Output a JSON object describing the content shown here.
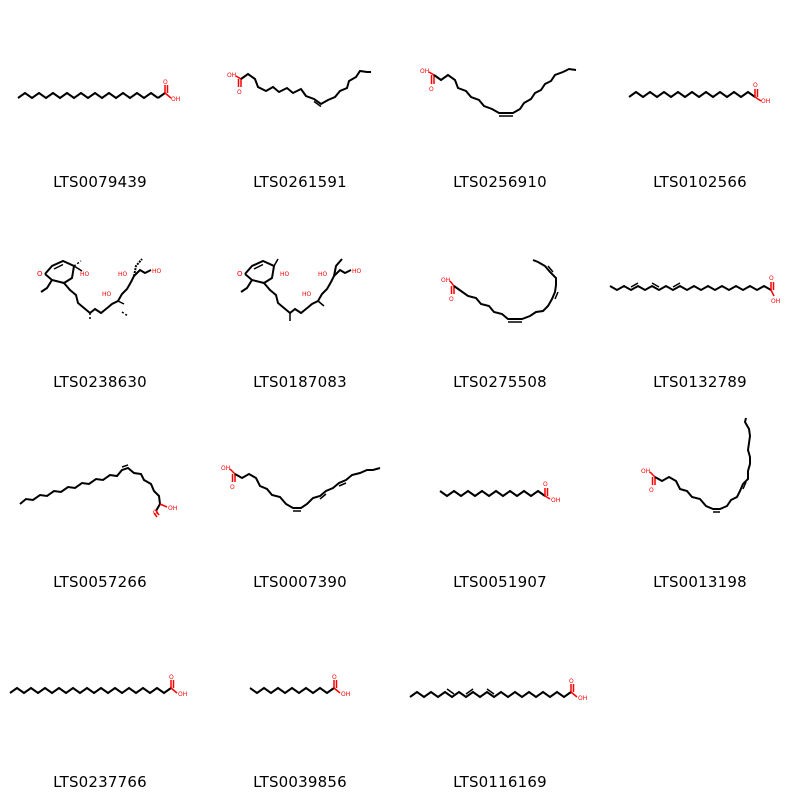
{
  "colors": {
    "bond": "#000000",
    "heteroatom": "#ff0000",
    "background": "#ffffff"
  },
  "atom_labels": {
    "acid_hydroxyl": "OH",
    "ketone_oxygen": "O",
    "alcohol": "HO"
  },
  "molecules": [
    {
      "id": "LTS0079439"
    },
    {
      "id": "LTS0261591"
    },
    {
      "id": "LTS0256910"
    },
    {
      "id": "LTS0102566"
    },
    {
      "id": "LTS0238630"
    },
    {
      "id": "LTS0187083"
    },
    {
      "id": "LTS0275508"
    },
    {
      "id": "LTS0132789"
    },
    {
      "id": "LTS0057266"
    },
    {
      "id": "LTS0007390"
    },
    {
      "id": "LTS0051907"
    },
    {
      "id": "LTS0013198"
    },
    {
      "id": "LTS0237766"
    },
    {
      "id": "LTS0039856"
    },
    {
      "id": "LTS0116169"
    }
  ]
}
